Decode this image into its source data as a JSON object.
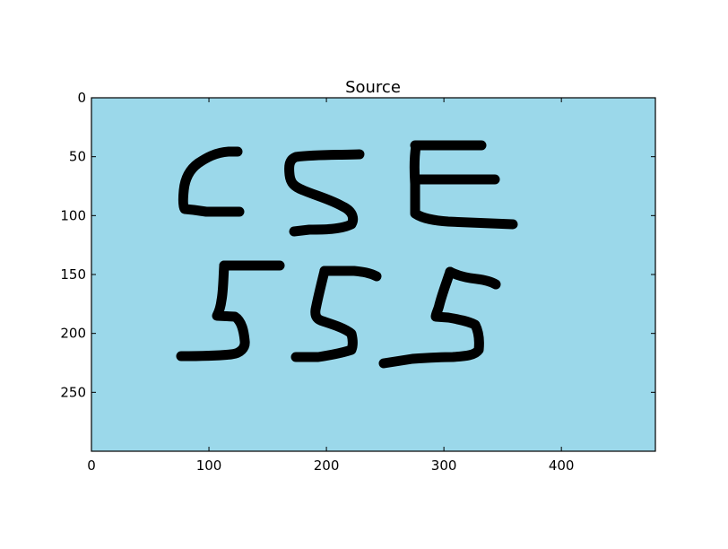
{
  "figure": {
    "title": "Source",
    "image_background": "#9bd8ea",
    "ink_color": "#000000",
    "text_drawn": "CSE 555",
    "x_ticks": [
      "0",
      "100",
      "200",
      "300",
      "400"
    ],
    "y_ticks": [
      "0",
      "50",
      "100",
      "150",
      "200",
      "250"
    ],
    "x_range": [
      0,
      480
    ],
    "y_range": [
      0,
      300
    ],
    "y_inverted": true
  }
}
